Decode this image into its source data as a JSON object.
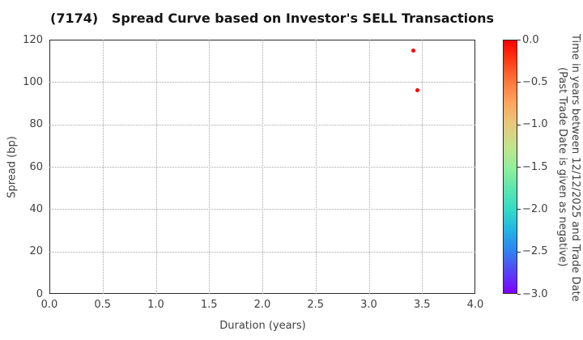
{
  "chart_data": {
    "type": "scatter",
    "title": "(7174)   Spread Curve based on Investor's SELL Transactions",
    "xlabel": "Duration (years)",
    "ylabel": "Spread (bp)",
    "xlim": [
      0.0,
      4.0
    ],
    "ylim": [
      0,
      120
    ],
    "grid": "dotted",
    "x_ticks": [
      {
        "value": 0.0,
        "label": "0.0"
      },
      {
        "value": 0.5,
        "label": "0.5"
      },
      {
        "value": 1.0,
        "label": "1.0"
      },
      {
        "value": 1.5,
        "label": "1.5"
      },
      {
        "value": 2.0,
        "label": "2.0"
      },
      {
        "value": 2.5,
        "label": "2.5"
      },
      {
        "value": 3.0,
        "label": "3.0"
      },
      {
        "value": 3.5,
        "label": "3.5"
      },
      {
        "value": 4.0,
        "label": "4.0"
      }
    ],
    "y_ticks": [
      {
        "value": 0,
        "label": "0"
      },
      {
        "value": 20,
        "label": "20"
      },
      {
        "value": 40,
        "label": "40"
      },
      {
        "value": 60,
        "label": "60"
      },
      {
        "value": 80,
        "label": "80"
      },
      {
        "value": 100,
        "label": "100"
      },
      {
        "value": 120,
        "label": "120"
      }
    ],
    "points": [
      {
        "x": 3.42,
        "y": 115,
        "color_value": 0.0,
        "color": "#ff0000"
      },
      {
        "x": 3.46,
        "y": 96,
        "color_value": 0.0,
        "color": "#ff0000"
      }
    ],
    "colorbar": {
      "label_line1": "Time in years between 12/12/2025 and Trade Date",
      "label_line2": "(Past Trade Date is given as negative)",
      "range_top": 0.0,
      "range_bottom": -3.0,
      "ticks": [
        {
          "value": 0.0,
          "label": "0.0"
        },
        {
          "value": -0.5,
          "label": "−0.5"
        },
        {
          "value": -1.0,
          "label": "−1.0"
        },
        {
          "value": -1.5,
          "label": "−1.5"
        },
        {
          "value": -2.0,
          "label": "−2.0"
        },
        {
          "value": -2.5,
          "label": "−2.5"
        },
        {
          "value": -3.0,
          "label": "−3.0"
        }
      ],
      "gradient_stops": [
        {
          "pos": 0.0,
          "color": "#ff0000"
        },
        {
          "pos": 0.08,
          "color": "#ff3d13"
        },
        {
          "pos": 0.17,
          "color": "#fe7b3e"
        },
        {
          "pos": 0.25,
          "color": "#fda75f"
        },
        {
          "pos": 0.33,
          "color": "#e8c87c"
        },
        {
          "pos": 0.42,
          "color": "#c3e38c"
        },
        {
          "pos": 0.5,
          "color": "#94ef9a"
        },
        {
          "pos": 0.58,
          "color": "#60e7ad"
        },
        {
          "pos": 0.67,
          "color": "#33dbc5"
        },
        {
          "pos": 0.75,
          "color": "#22b5e5"
        },
        {
          "pos": 0.83,
          "color": "#2f84f1"
        },
        {
          "pos": 0.92,
          "color": "#5940f6"
        },
        {
          "pos": 1.0,
          "color": "#7f00ff"
        }
      ]
    }
  }
}
